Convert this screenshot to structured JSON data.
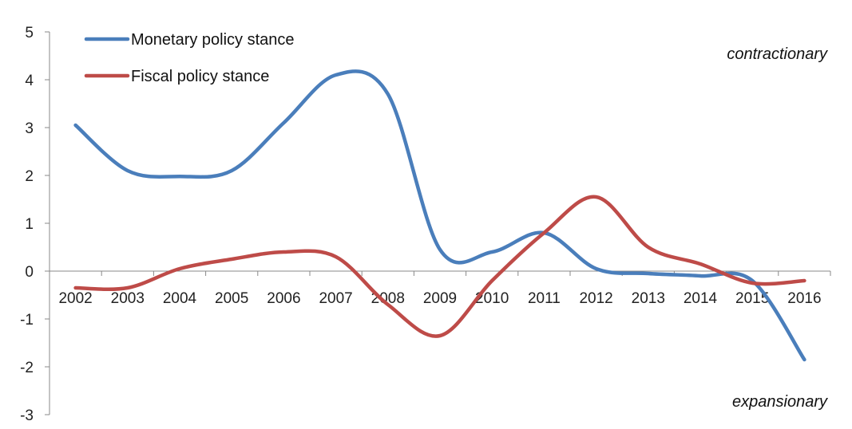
{
  "chart_data": {
    "type": "line",
    "title": "",
    "xlabel": "",
    "ylabel": "",
    "categories": [
      "2002",
      "2003",
      "2004",
      "2005",
      "2006",
      "2007",
      "2008",
      "2009",
      "2010",
      "2011",
      "2012",
      "2013",
      "2014",
      "2015",
      "2016"
    ],
    "y_ticks": [
      "5",
      "4",
      "3",
      "2",
      "1",
      "0",
      "-1",
      "-2",
      "-3"
    ],
    "ylim": [
      -3,
      5
    ],
    "grid": false,
    "legend": "top-left",
    "series": [
      {
        "name": "Monetary policy stance",
        "color": "#4a7ebb",
        "values": [
          3.05,
          2.1,
          1.98,
          2.1,
          3.1,
          4.1,
          3.7,
          0.45,
          0.4,
          0.8,
          0.05,
          -0.05,
          -0.1,
          -0.2,
          -1.85
        ]
      },
      {
        "name": "Fiscal policy stance",
        "color": "#be4b48",
        "values": [
          -0.35,
          -0.35,
          0.05,
          0.25,
          0.4,
          0.3,
          -0.7,
          -1.35,
          -0.2,
          0.8,
          1.55,
          0.5,
          0.15,
          -0.25,
          -0.2
        ]
      }
    ],
    "annotations": {
      "top": "contractionary",
      "bottom": "expansionary"
    }
  }
}
